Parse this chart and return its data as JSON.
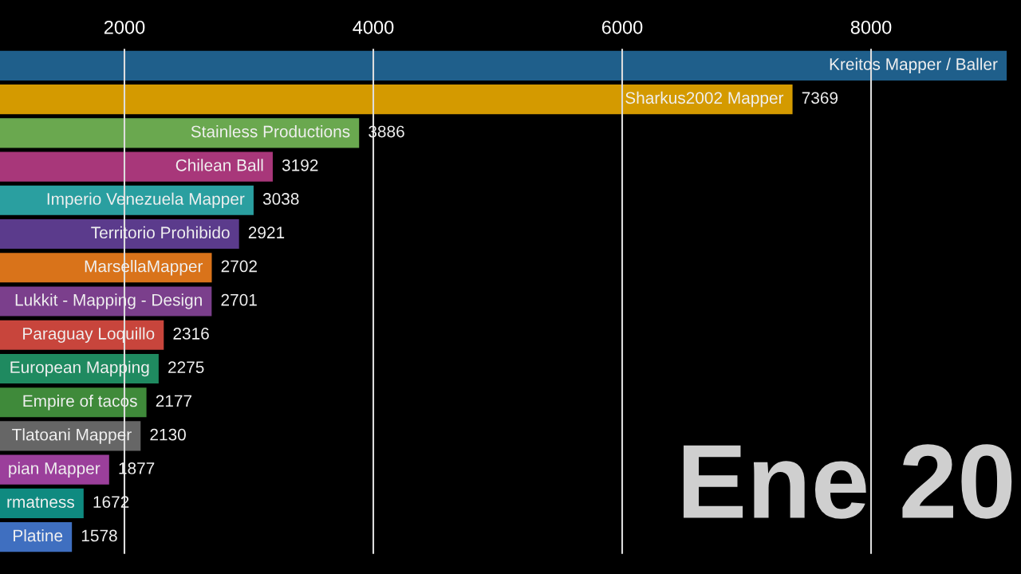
{
  "chart_data": {
    "type": "bar",
    "orientation": "horizontal",
    "categories": [
      "Kreitos Mapper / Baller",
      "Sharkus2002 Mapper",
      "Stainless Productions",
      "Chilean Ball",
      "Imperio Venezuela Mapper",
      "Territorio Prohibido",
      "MarsellaMapper",
      "Lukkit - Mapping - Design",
      "Paraguay Loquillo",
      "European Mapping",
      "Empire of tacos",
      "Tlatoani Mapper",
      "pian Mapper",
      "rmatness",
      "Platine"
    ],
    "values": [
      9090,
      7369,
      3886,
      3192,
      3038,
      2921,
      2702,
      2701,
      2316,
      2275,
      2177,
      2130,
      1877,
      1672,
      1578
    ],
    "value_labels": [
      null,
      "7369",
      "3886",
      "3192",
      "3038",
      "2921",
      "2702",
      "2701",
      "2316",
      "2275",
      "2177",
      "2130",
      "1877",
      "1672",
      "1578"
    ],
    "colors": [
      "#1f5f8b",
      "#d49a00",
      "#6aa84f",
      "#a8377a",
      "#2a9fa0",
      "#5b3b8c",
      "#d9731a",
      "#7b3f8c",
      "#c8453c",
      "#1f8a60",
      "#3f8a3a",
      "#666666",
      "#9b3f9b",
      "#0f8a80",
      "#3f6fc0"
    ],
    "xlim": [
      1000,
      9205
    ],
    "xticks": [
      2000,
      4000,
      6000,
      8000
    ],
    "grid": "x",
    "tick_labels": "x",
    "annotations": [
      "Ene 20"
    ]
  }
}
